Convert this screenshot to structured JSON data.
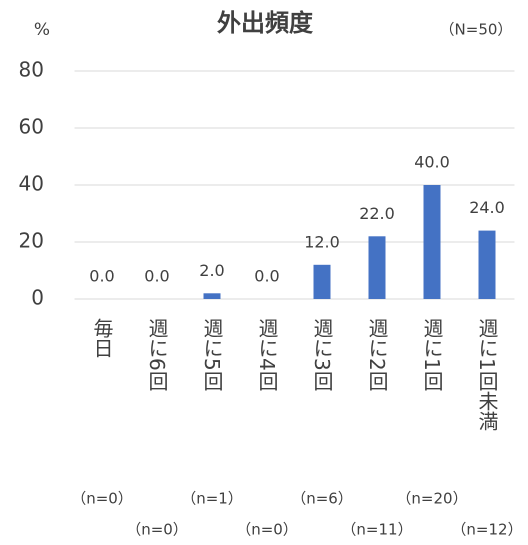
{
  "chart_data": {
    "type": "bar",
    "title": "外出頻度",
    "y_unit": "%",
    "note": "（N=50）",
    "categories": [
      "毎日",
      "週に6回",
      "週に5回",
      "週に4回",
      "週に3回",
      "週に2回",
      "週に1回",
      "週に1回未満"
    ],
    "values": [
      0,
      0,
      2,
      0,
      12,
      22,
      40,
      24
    ],
    "value_labels": [
      "0.0",
      "0.0",
      "2.0",
      "0.0",
      "12.0",
      "22.0",
      "40.0",
      "24.0"
    ],
    "sample_sizes": [
      "（n=0）",
      "（n=0）",
      "（n=1）",
      "（n=0）",
      "（n=6）",
      "（n=11）",
      "（n=20）",
      "（n=12）"
    ],
    "color": "#4472c4",
    "ylim": [
      0,
      80
    ],
    "yticks": [
      0,
      20,
      40,
      60,
      80
    ],
    "grid": true
  }
}
